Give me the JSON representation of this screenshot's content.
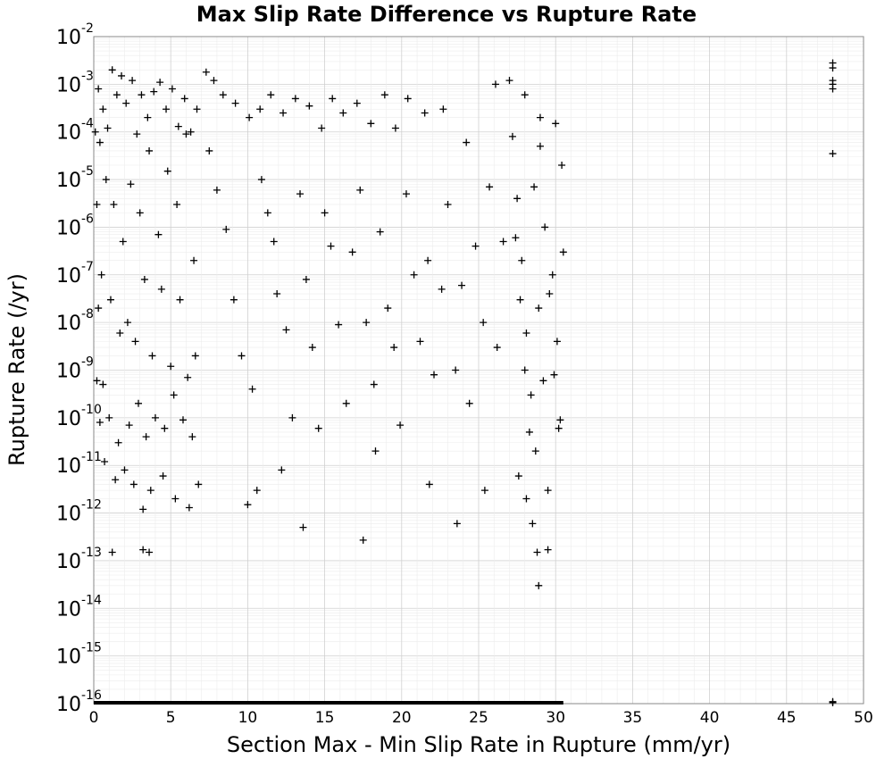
{
  "chart_data": {
    "type": "scatter",
    "title": "Max Slip Rate Difference vs Rupture Rate",
    "xlabel": "Section Max - Min Slip Rate in Rupture (mm/yr)",
    "ylabel": "Rupture Rate (/yr)",
    "xlim": [
      0,
      50
    ],
    "ylim": [
      1e-16,
      0.01
    ],
    "yscale": "log",
    "grid": true,
    "marker": "plus",
    "marker_color": "#000000",
    "xticks": [
      "0",
      "5",
      "10",
      "15",
      "20",
      "25",
      "30",
      "35",
      "40",
      "45",
      "50"
    ],
    "yticks": [
      {
        "base": "10",
        "exp": "-2"
      },
      {
        "base": "10",
        "exp": "-3"
      },
      {
        "base": "10",
        "exp": "-4"
      },
      {
        "base": "10",
        "exp": "-5"
      },
      {
        "base": "10",
        "exp": "-6"
      },
      {
        "base": "10",
        "exp": "-7"
      },
      {
        "base": "10",
        "exp": "-8"
      },
      {
        "base": "10",
        "exp": "-9"
      },
      {
        "base": "10",
        "exp": "-10"
      },
      {
        "base": "10",
        "exp": "-11"
      },
      {
        "base": "10",
        "exp": "-12"
      },
      {
        "base": "10",
        "exp": "-13"
      },
      {
        "base": "10",
        "exp": "-14"
      },
      {
        "base": "10",
        "exp": "-15"
      },
      {
        "base": "10",
        "exp": "-16"
      }
    ],
    "points": [
      [
        0.3,
        0.0008
      ],
      [
        0.6,
        0.0003
      ],
      [
        0.9,
        0.00012
      ],
      [
        1.2,
        0.002
      ],
      [
        1.5,
        0.0006
      ],
      [
        1.8,
        0.0015
      ],
      [
        2.1,
        0.0004
      ],
      [
        2.5,
        0.0012
      ],
      [
        2.8,
        9e-05
      ],
      [
        3.1,
        0.0006
      ],
      [
        3.5,
        0.0002
      ],
      [
        3.9,
        0.0007
      ],
      [
        4.3,
        0.0011
      ],
      [
        4.7,
        0.0003
      ],
      [
        5.1,
        0.0008
      ],
      [
        5.5,
        0.00013
      ],
      [
        5.9,
        0.0005
      ],
      [
        6.3,
        0.0001
      ],
      [
        6.7,
        0.0003
      ],
      [
        7.3,
        0.0018
      ],
      [
        7.8,
        0.0012
      ],
      [
        8.4,
        0.0006
      ],
      [
        9.2,
        0.0004
      ],
      [
        10.1,
        0.0002
      ],
      [
        10.8,
        0.0003
      ],
      [
        11.5,
        0.0006
      ],
      [
        12.3,
        0.00025
      ],
      [
        13.1,
        0.0005
      ],
      [
        14.0,
        0.00035
      ],
      [
        14.8,
        0.00012
      ],
      [
        15.5,
        0.0005
      ],
      [
        16.2,
        0.00025
      ],
      [
        17.1,
        0.0004
      ],
      [
        18.0,
        0.00015
      ],
      [
        18.9,
        0.0006
      ],
      [
        19.6,
        0.00012
      ],
      [
        20.4,
        0.0005
      ],
      [
        21.5,
        0.00025
      ],
      [
        22.7,
        0.0003
      ],
      [
        24.2,
        6e-05
      ],
      [
        26.1,
        0.001
      ],
      [
        27.0,
        0.0012
      ],
      [
        28.0,
        0.0006
      ],
      [
        29.0,
        0.0002
      ],
      [
        30.0,
        0.00015
      ],
      [
        0.4,
        6e-05
      ],
      [
        0.8,
        1e-05
      ],
      [
        1.3,
        3e-06
      ],
      [
        1.9,
        5e-07
      ],
      [
        2.4,
        8e-06
      ],
      [
        3.0,
        2e-06
      ],
      [
        3.6,
        4e-05
      ],
      [
        4.2,
        7e-07
      ],
      [
        4.8,
        1.5e-05
      ],
      [
        5.4,
        3e-06
      ],
      [
        6.0,
        9e-05
      ],
      [
        6.5,
        2e-07
      ],
      [
        0.5,
        1e-07
      ],
      [
        1.1,
        3e-08
      ],
      [
        1.7,
        6e-09
      ],
      [
        2.2,
        1e-08
      ],
      [
        2.7,
        4e-09
      ],
      [
        3.3,
        8e-08
      ],
      [
        3.8,
        2e-09
      ],
      [
        4.4,
        5e-08
      ],
      [
        5.0,
        1.2e-09
      ],
      [
        5.6,
        3e-08
      ],
      [
        6.1,
        7e-10
      ],
      [
        6.6,
        2e-09
      ],
      [
        0.6,
        5e-10
      ],
      [
        1.0,
        1e-10
      ],
      [
        1.6,
        3e-11
      ],
      [
        2.3,
        7e-11
      ],
      [
        2.9,
        2e-10
      ],
      [
        3.4,
        4e-11
      ],
      [
        4.0,
        1e-10
      ],
      [
        4.6,
        6e-11
      ],
      [
        5.2,
        3e-10
      ],
      [
        5.8,
        9e-11
      ],
      [
        6.4,
        4e-11
      ],
      [
        0.7,
        1.2e-11
      ],
      [
        1.4,
        5e-12
      ],
      [
        2.0,
        8e-12
      ],
      [
        2.6,
        4e-12
      ],
      [
        3.2,
        1.2e-12
      ],
      [
        3.7,
        3e-12
      ],
      [
        4.5,
        6e-12
      ],
      [
        5.3,
        2e-12
      ],
      [
        6.2,
        1.3e-12
      ],
      [
        6.8,
        4e-12
      ],
      [
        1.2,
        1.5e-13
      ],
      [
        3.2,
        1.7e-13
      ],
      [
        3.6,
        1.5e-13
      ],
      [
        7.5,
        4e-05
      ],
      [
        8.0,
        6e-06
      ],
      [
        8.6,
        9e-07
      ],
      [
        9.1,
        3e-08
      ],
      [
        9.6,
        2e-09
      ],
      [
        10.3,
        4e-10
      ],
      [
        10.9,
        1e-05
      ],
      [
        11.3,
        2e-06
      ],
      [
        11.7,
        5e-07
      ],
      [
        11.9,
        4e-08
      ],
      [
        12.5,
        7e-09
      ],
      [
        12.9,
        1e-10
      ],
      [
        13.4,
        5e-06
      ],
      [
        13.8,
        8e-08
      ],
      [
        14.2,
        3e-09
      ],
      [
        14.6,
        6e-11
      ],
      [
        15.0,
        2e-06
      ],
      [
        15.4,
        4e-07
      ],
      [
        15.9,
        9e-09
      ],
      [
        16.4,
        2e-10
      ],
      [
        16.8,
        3e-07
      ],
      [
        17.3,
        6e-06
      ],
      [
        17.7,
        1e-08
      ],
      [
        18.2,
        5e-10
      ],
      [
        18.6,
        8e-07
      ],
      [
        19.1,
        2e-08
      ],
      [
        19.5,
        3e-09
      ],
      [
        19.9,
        7e-11
      ],
      [
        20.3,
        5e-06
      ],
      [
        20.8,
        1e-07
      ],
      [
        21.2,
        4e-09
      ],
      [
        21.7,
        2e-07
      ],
      [
        22.1,
        8e-10
      ],
      [
        22.6,
        5e-08
      ],
      [
        23.0,
        3e-06
      ],
      [
        23.5,
        1e-09
      ],
      [
        23.9,
        6e-08
      ],
      [
        24.4,
        2e-10
      ],
      [
        24.8,
        4e-07
      ],
      [
        25.3,
        1e-08
      ],
      [
        25.7,
        7e-06
      ],
      [
        26.2,
        3e-09
      ],
      [
        26.6,
        5e-07
      ],
      [
        10.0,
        1.5e-12
      ],
      [
        10.6,
        3e-12
      ],
      [
        13.6,
        5e-13
      ],
      [
        17.5,
        2.7e-13
      ],
      [
        18.3,
        2e-11
      ],
      [
        21.8,
        4e-12
      ],
      [
        23.6,
        6e-13
      ],
      [
        25.4,
        3e-12
      ],
      [
        12.2,
        8e-12
      ],
      [
        27.2,
        8e-05
      ],
      [
        27.5,
        4e-06
      ],
      [
        27.8,
        2e-07
      ],
      [
        28.1,
        6e-09
      ],
      [
        28.4,
        3e-10
      ],
      [
        28.7,
        2e-11
      ],
      [
        29.0,
        5e-05
      ],
      [
        29.3,
        1e-06
      ],
      [
        29.6,
        4e-08
      ],
      [
        29.9,
        8e-10
      ],
      [
        30.2,
        6e-11
      ],
      [
        30.4,
        2e-05
      ],
      [
        27.4,
        6e-07
      ],
      [
        27.7,
        3e-08
      ],
      [
        28.0,
        1e-09
      ],
      [
        28.3,
        5e-11
      ],
      [
        28.6,
        7e-06
      ],
      [
        28.9,
        2e-08
      ],
      [
        29.2,
        6e-10
      ],
      [
        29.5,
        3e-12
      ],
      [
        29.8,
        1e-07
      ],
      [
        30.1,
        4e-09
      ],
      [
        30.3,
        9e-11
      ],
      [
        30.5,
        3e-07
      ],
      [
        27.6,
        6e-12
      ],
      [
        28.1,
        2e-12
      ],
      [
        28.5,
        6e-13
      ],
      [
        28.8,
        1.5e-13
      ],
      [
        29.5,
        1.7e-13
      ],
      [
        28.9,
        3e-14
      ],
      [
        0.2,
        3e-06
      ],
      [
        0.3,
        2e-08
      ],
      [
        0.2,
        6e-10
      ],
      [
        0.4,
        8e-11
      ],
      [
        0.1,
        0.0001
      ],
      [
        48.0,
        0.0028
      ],
      [
        48.0,
        0.0022
      ],
      [
        48.0,
        0.0012
      ],
      [
        48.0,
        0.001
      ],
      [
        48.0,
        0.0008
      ],
      [
        48.0,
        3.5e-05
      ],
      [
        48.0,
        1.1e-16
      ],
      [
        48.0,
        1.05e-16
      ]
    ],
    "baseline": {
      "y": 1e-16,
      "x_from": 0,
      "x_to": 30.5
    }
  }
}
